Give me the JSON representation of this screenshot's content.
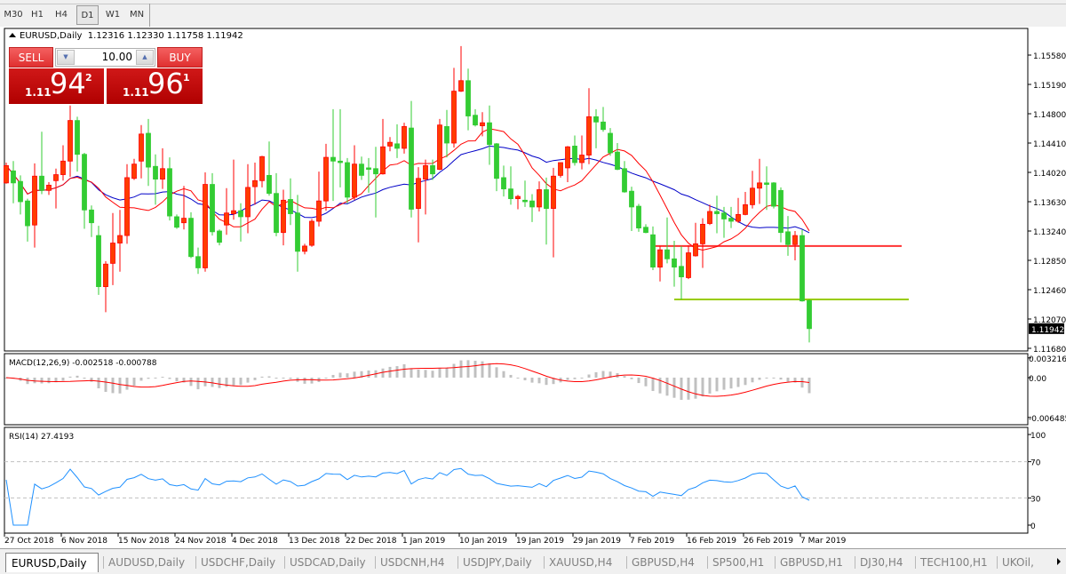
{
  "timeframes": [
    {
      "label": "M30",
      "active": false
    },
    {
      "label": "H1",
      "active": false
    },
    {
      "label": "H4",
      "active": false
    },
    {
      "label": "D1",
      "active": true
    },
    {
      "label": "W1",
      "active": false
    },
    {
      "label": "MN",
      "active": false
    }
  ],
  "header": {
    "symbol": "EURUSD,Daily",
    "ohlc": "1.12316 1.12330 1.11758 1.11942"
  },
  "trade_panel": {
    "sell_label": "SELL",
    "buy_label": "BUY",
    "volume": "10.00",
    "sell_price": {
      "prefix": "1.11",
      "big": "94",
      "sup": "2"
    },
    "buy_price": {
      "prefix": "1.11",
      "big": "96",
      "sup": "1"
    }
  },
  "colors": {
    "bull_body": "#ff3c00",
    "bull_wick": "#ff0000",
    "bear_body": "#33cc33",
    "fast_ma": "#ff0000",
    "slow_ma": "#0000c8",
    "macd_hist": "#c0c0c0",
    "macd_signal": "#ff0000",
    "rsi_line": "#1e90ff",
    "hline_resistance": "#ff3333",
    "hline_support": "#99cc00"
  },
  "chart_data": {
    "type": "candlestick",
    "symbol": "EURUSD,Daily",
    "price_axis_ticks": [
      "1.15580",
      "1.15190",
      "1.14800",
      "1.14410",
      "1.14020",
      "1.13630",
      "1.13240",
      "1.12850",
      "1.12460",
      "1.12070",
      "1.11680"
    ],
    "price_range": [
      1.1168,
      1.1558
    ],
    "last_price_label": "1.11942",
    "last_price": 1.11942,
    "x_tick_labels": [
      "27 Oct 2018",
      "6 Nov 2018",
      "15 Nov 2018",
      "24 Nov 2018",
      "4 Dec 2018",
      "13 Dec 2018",
      "22 Dec 2018",
      "1 Jan 2019",
      "10 Jan 2019",
      "19 Jan 2019",
      "29 Jan 2019",
      "7 Feb 2019",
      "16 Feb 2019",
      "26 Feb 2019",
      "7 Mar 2019"
    ],
    "x_tick_every_bars": 8,
    "candles_ohlc": [
      [
        1.1388,
        1.1415,
        1.1387,
        1.1411
      ],
      [
        1.1404,
        1.1417,
        1.1361,
        1.1388
      ],
      [
        1.139,
        1.1398,
        1.1346,
        1.1363
      ],
      [
        1.1364,
        1.1367,
        1.131,
        1.1331
      ],
      [
        1.1332,
        1.1414,
        1.1302,
        1.1397
      ],
      [
        1.1397,
        1.1456,
        1.1373,
        1.1378
      ],
      [
        1.1378,
        1.1389,
        1.1372,
        1.1385
      ],
      [
        1.1391,
        1.1407,
        1.1354,
        1.1399
      ],
      [
        1.1399,
        1.1438,
        1.1391,
        1.1417
      ],
      [
        1.1417,
        1.1491,
        1.1396,
        1.1471
      ],
      [
        1.1471,
        1.1476,
        1.1403,
        1.1426
      ],
      [
        1.1426,
        1.1428,
        1.1327,
        1.1352
      ],
      [
        1.1352,
        1.1358,
        1.1316,
        1.1335
      ],
      [
        1.1318,
        1.1331,
        1.1239,
        1.125
      ],
      [
        1.125,
        1.1284,
        1.1216,
        1.128
      ],
      [
        1.1281,
        1.1348,
        1.1252,
        1.1308
      ],
      [
        1.1308,
        1.1352,
        1.127,
        1.1318
      ],
      [
        1.1318,
        1.1413,
        1.1307,
        1.1395
      ],
      [
        1.1394,
        1.142,
        1.1392,
        1.1413
      ],
      [
        1.1417,
        1.1465,
        1.1394,
        1.1453
      ],
      [
        1.1454,
        1.1473,
        1.1384,
        1.1409
      ],
      [
        1.141,
        1.1426,
        1.1359,
        1.1393
      ],
      [
        1.1393,
        1.1434,
        1.138,
        1.1407
      ],
      [
        1.1407,
        1.1422,
        1.1338,
        1.1344
      ],
      [
        1.1343,
        1.1346,
        1.1327,
        1.1329
      ],
      [
        1.1335,
        1.1384,
        1.1326,
        1.1341
      ],
      [
        1.1341,
        1.1349,
        1.1288,
        1.129
      ],
      [
        1.129,
        1.1302,
        1.1267,
        1.1275
      ],
      [
        1.1275,
        1.1402,
        1.127,
        1.1386
      ],
      [
        1.1386,
        1.1401,
        1.1318,
        1.1323
      ],
      [
        1.1324,
        1.1326,
        1.1305,
        1.1309
      ],
      [
        1.1332,
        1.1381,
        1.1319,
        1.1348
      ],
      [
        1.1347,
        1.1419,
        1.1339,
        1.1351
      ],
      [
        1.1351,
        1.1361,
        1.131,
        1.1343
      ],
      [
        1.1343,
        1.1413,
        1.1321,
        1.1382
      ],
      [
        1.1383,
        1.1415,
        1.1359,
        1.1391
      ],
      [
        1.1391,
        1.1424,
        1.1382,
        1.1423
      ],
      [
        1.1398,
        1.1443,
        1.1371,
        1.1374
      ],
      [
        1.1374,
        1.1401,
        1.1317,
        1.1322
      ],
      [
        1.1322,
        1.1379,
        1.1305,
        1.1365
      ],
      [
        1.1366,
        1.1394,
        1.1332,
        1.1347
      ],
      [
        1.1348,
        1.1372,
        1.127,
        1.1297
      ],
      [
        1.1297,
        1.1307,
        1.1293,
        1.1304
      ],
      [
        1.1305,
        1.134,
        1.1303,
        1.1337
      ],
      [
        1.1337,
        1.1403,
        1.133,
        1.1364
      ],
      [
        1.1364,
        1.144,
        1.1351,
        1.1422
      ],
      [
        1.1422,
        1.1486,
        1.1364,
        1.1417
      ],
      [
        1.1417,
        1.1486,
        1.1382,
        1.1415
      ],
      [
        1.1415,
        1.1421,
        1.1361,
        1.1369
      ],
      [
        1.1369,
        1.1438,
        1.1365,
        1.1413
      ],
      [
        1.1413,
        1.1423,
        1.1392,
        1.1398
      ],
      [
        1.1408,
        1.1421,
        1.1375,
        1.1406
      ],
      [
        1.1407,
        1.1436,
        1.1342,
        1.14
      ],
      [
        1.14,
        1.1473,
        1.1399,
        1.1436
      ],
      [
        1.1437,
        1.1449,
        1.143,
        1.1442
      ],
      [
        1.144,
        1.1466,
        1.1421,
        1.1434
      ],
      [
        1.1434,
        1.1468,
        1.1427,
        1.1463
      ],
      [
        1.1461,
        1.1497,
        1.1342,
        1.1353
      ],
      [
        1.1354,
        1.1409,
        1.1309,
        1.1394
      ],
      [
        1.1393,
        1.1419,
        1.1346,
        1.1411
      ],
      [
        1.1411,
        1.1419,
        1.1392,
        1.14
      ],
      [
        1.1406,
        1.1473,
        1.1405,
        1.1465
      ],
      [
        1.1463,
        1.1485,
        1.1422,
        1.1441
      ],
      [
        1.1441,
        1.1541,
        1.1435,
        1.151
      ],
      [
        1.151,
        1.157,
        1.1509,
        1.1524
      ],
      [
        1.1524,
        1.154,
        1.1458,
        1.1477
      ],
      [
        1.1478,
        1.1486,
        1.1463,
        1.1465
      ],
      [
        1.1464,
        1.1482,
        1.145,
        1.1468
      ],
      [
        1.1468,
        1.1491,
        1.1412,
        1.1439
      ],
      [
        1.144,
        1.1441,
        1.1377,
        1.1394
      ],
      [
        1.1395,
        1.1411,
        1.137,
        1.138
      ],
      [
        1.138,
        1.141,
        1.1359,
        1.1367
      ],
      [
        1.1367,
        1.1372,
        1.1353,
        1.137
      ],
      [
        1.1365,
        1.1391,
        1.1356,
        1.1363
      ],
      [
        1.1364,
        1.1373,
        1.1336,
        1.1356
      ],
      [
        1.1356,
        1.139,
        1.135,
        1.1379
      ],
      [
        1.1379,
        1.1395,
        1.1306,
        1.1354
      ],
      [
        1.1354,
        1.1408,
        1.1289,
        1.1397
      ],
      [
        1.1398,
        1.1415,
        1.1395,
        1.1415
      ],
      [
        1.1408,
        1.1437,
        1.1389,
        1.1436
      ],
      [
        1.1437,
        1.1451,
        1.1411,
        1.1415
      ],
      [
        1.1415,
        1.1451,
        1.1406,
        1.1425
      ],
      [
        1.1425,
        1.1514,
        1.1413,
        1.1476
      ],
      [
        1.1476,
        1.1486,
        1.1434,
        1.1469
      ],
      [
        1.1469,
        1.1489,
        1.1456,
        1.1459
      ],
      [
        1.1454,
        1.1461,
        1.1424,
        1.1428
      ],
      [
        1.1429,
        1.1441,
        1.1405,
        1.1406
      ],
      [
        1.1407,
        1.1417,
        1.1375,
        1.1376
      ],
      [
        1.1377,
        1.1383,
        1.1324,
        1.1356
      ],
      [
        1.1357,
        1.136,
        1.1323,
        1.1328
      ],
      [
        1.1329,
        1.1333,
        1.1321,
        1.1322
      ],
      [
        1.1319,
        1.133,
        1.1272,
        1.1276
      ],
      [
        1.1276,
        1.1304,
        1.1257,
        1.1299
      ],
      [
        1.1299,
        1.1342,
        1.1281,
        1.1287
      ],
      [
        1.1287,
        1.1311,
        1.125,
        1.1276
      ],
      [
        1.1277,
        1.1304,
        1.1233,
        1.1263
      ],
      [
        1.1262,
        1.1305,
        1.126,
        1.1295
      ],
      [
        1.1291,
        1.1335,
        1.129,
        1.1307
      ],
      [
        1.1307,
        1.1341,
        1.1275,
        1.1333
      ],
      [
        1.1334,
        1.1359,
        1.1332,
        1.135
      ],
      [
        1.135,
        1.1371,
        1.1321,
        1.1347
      ],
      [
        1.1348,
        1.1356,
        1.1315,
        1.134
      ],
      [
        1.1341,
        1.1356,
        1.1328,
        1.1337
      ],
      [
        1.1337,
        1.1368,
        1.1335,
        1.1346
      ],
      [
        1.1346,
        1.1376,
        1.1345,
        1.1359
      ],
      [
        1.1359,
        1.1404,
        1.1354,
        1.1381
      ],
      [
        1.1381,
        1.142,
        1.136,
        1.1388
      ],
      [
        1.1388,
        1.141,
        1.1352,
        1.1386
      ],
      [
        1.1388,
        1.1389,
        1.1354,
        1.1357
      ],
      [
        1.1378,
        1.1382,
        1.1309,
        1.1322
      ],
      [
        1.1323,
        1.1344,
        1.1291,
        1.1306
      ],
      [
        1.1306,
        1.1324,
        1.1285,
        1.1318
      ],
      [
        1.1318,
        1.1326,
        1.123,
        1.1231
      ],
      [
        1.12316,
        1.1233,
        1.11758,
        1.11942
      ]
    ],
    "horizontal_lines": [
      {
        "price": 1.1304,
        "from_bar": 91,
        "to_bar": 126,
        "color": "#ff3333"
      },
      {
        "price": 1.1233,
        "from_bar": 94,
        "to_bar": 127,
        "color": "#99cc00"
      }
    ],
    "macd": {
      "label": "MACD(12,26,9) -0.002518 -0.000788",
      "main_last": -0.002518,
      "signal_last": -0.000788,
      "axis_ticks": [
        "0.003216",
        "0.00",
        "-0.006485"
      ],
      "range": [
        -0.006485,
        0.003216
      ]
    },
    "rsi": {
      "label": "RSI(14) 27.4193",
      "last": 27.4193,
      "axis_ticks": [
        "100",
        "70",
        "30",
        "0"
      ],
      "levels": [
        70,
        30
      ],
      "range": [
        0,
        100
      ]
    }
  },
  "tabs": [
    {
      "label": "EURUSD,Daily",
      "active": true
    },
    {
      "label": "AUDUSD,Daily"
    },
    {
      "label": "USDCHF,Daily"
    },
    {
      "label": "USDCAD,Daily"
    },
    {
      "label": "USDCNH,H4"
    },
    {
      "label": "USDJPY,Daily"
    },
    {
      "label": "XAUUSD,H4"
    },
    {
      "label": "GBPUSD,H4"
    },
    {
      "label": "SP500,H1"
    },
    {
      "label": "GBPUSD,H1"
    },
    {
      "label": "DJ30,H4"
    },
    {
      "label": "TECH100,H1"
    },
    {
      "label": "UKOil,"
    }
  ]
}
